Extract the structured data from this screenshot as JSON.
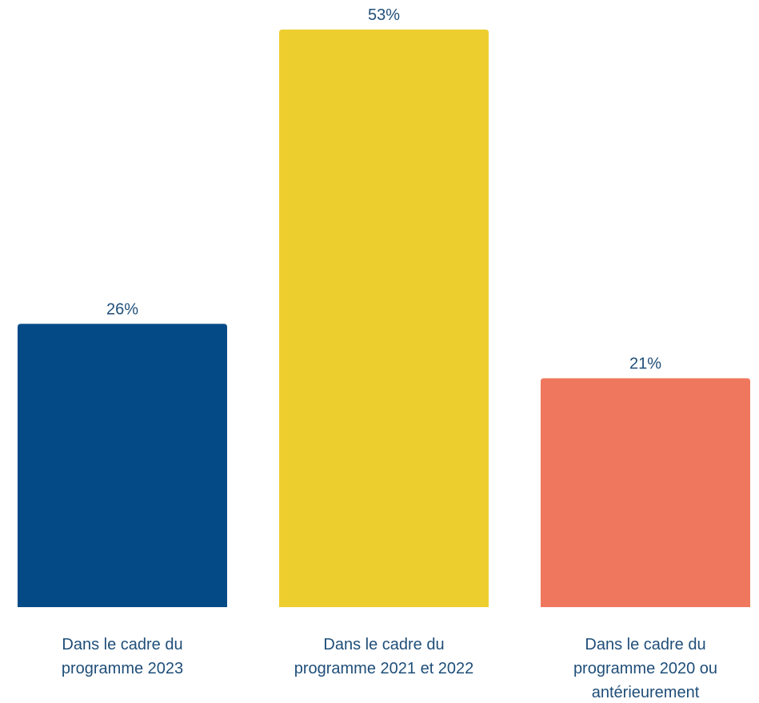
{
  "chart_data": {
    "type": "bar",
    "categories": [
      "Dans le cadre du programme 2023",
      "Dans le cadre du programme 2021 et 2022",
      "Dans le cadre du programme 2020 ou antérieurement"
    ],
    "category_lines": [
      [
        "Dans le cadre du",
        "programme 2023"
      ],
      [
        "Dans le cadre du",
        "programme 2021 et 2022"
      ],
      [
        "Dans le cadre du",
        "programme 2020 ou",
        "antérieurement"
      ]
    ],
    "values": [
      26,
      53,
      21
    ],
    "value_labels": [
      "26%",
      "53%",
      "21%"
    ],
    "colors": [
      "#034a87",
      "#edce2f",
      "#ef775d"
    ],
    "label_color": "#1f4e79",
    "ylim": [
      0,
      53
    ],
    "grid": false,
    "legend": "none",
    "title": "",
    "xlabel": "",
    "ylabel": ""
  }
}
